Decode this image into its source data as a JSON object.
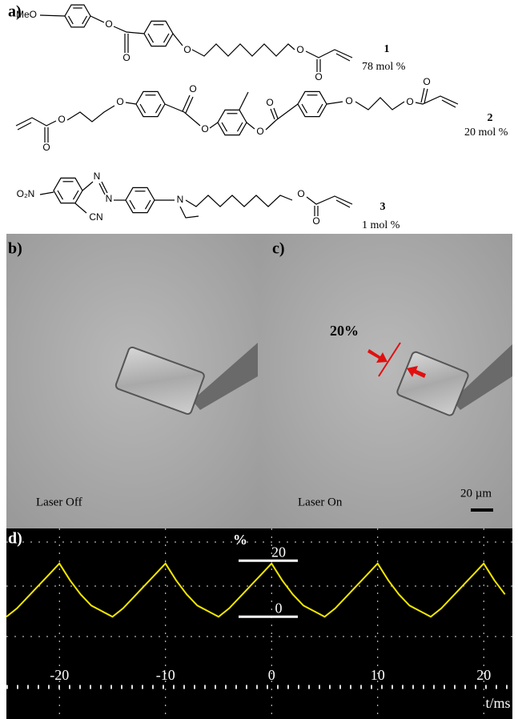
{
  "panel_a": {
    "label": "a)",
    "compounds": [
      {
        "atoms": [
          "MeO",
          "O",
          "O",
          "O",
          "O",
          "O"
        ],
        "number": "1",
        "amount": "78 mol %"
      },
      {
        "atoms": [
          "O",
          "O",
          "O",
          "O",
          "O",
          "O",
          "O",
          "O",
          "O",
          "O"
        ],
        "number": "2",
        "amount": "20 mol %"
      },
      {
        "atoms": [
          "O₂N",
          "N",
          "N",
          "CN",
          "N",
          "O",
          "O"
        ],
        "number": "3",
        "amount": "1 mol %"
      }
    ]
  },
  "panel_b": {
    "label": "b)",
    "caption": "Laser Off"
  },
  "panel_c": {
    "label": "c)",
    "caption": "Laser On",
    "strain": "20%",
    "scale_bar": "20 µm"
  },
  "panel_d": {
    "label": "d)",
    "type": "line",
    "color": "#f2e600",
    "x": [
      -25,
      -24,
      -23,
      -22,
      -21,
      -20,
      -19,
      -18,
      -17,
      -16,
      -15,
      -14,
      -13,
      -12,
      -11,
      -10,
      -9,
      -8,
      -7,
      -6,
      -5,
      -4,
      -3,
      -2,
      -1,
      0,
      1,
      2,
      3,
      4,
      5,
      6,
      7,
      8,
      9,
      10,
      11,
      12,
      13,
      14,
      15,
      16,
      17,
      18,
      19,
      20,
      21,
      22
    ],
    "values": [
      0,
      3,
      7,
      11,
      15,
      19,
      13,
      8,
      4,
      2,
      0,
      3,
      7,
      11,
      15,
      19,
      13,
      8,
      4,
      2,
      0,
      3,
      7,
      11,
      15,
      19,
      13,
      8,
      4,
      2,
      0,
      3,
      7,
      11,
      15,
      19,
      13,
      8,
      4,
      2,
      0,
      3,
      7,
      11,
      15,
      19,
      13,
      8
    ],
    "xlim": [
      -25,
      22.7
    ],
    "ylim": [
      -36.5,
      31.5
    ],
    "xticks": [
      -20,
      -10,
      0,
      10,
      20
    ],
    "yticks": [
      0,
      20
    ],
    "y_unit": "%",
    "x_label": "t/ms",
    "grid": true
  }
}
